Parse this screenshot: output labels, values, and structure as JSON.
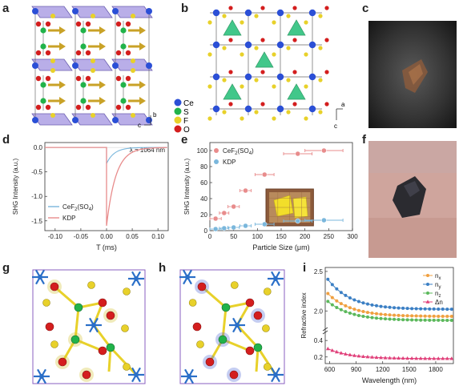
{
  "panels": {
    "a": "a",
    "b": "b",
    "c": "c",
    "d": "d",
    "e": "e",
    "f": "f",
    "g": "g",
    "h": "h",
    "i": "i"
  },
  "axes_a": {
    "b": "b",
    "c": "c"
  },
  "axes_b": {
    "a": "a",
    "c": "c"
  },
  "elements_b": [
    "Ce",
    "S",
    "F",
    "O"
  ],
  "colors": {
    "Ce": "#2b4fd6",
    "S": "#21b34a",
    "F": "#e8d12a",
    "O": "#d41e1e",
    "polyhedron": "#9a8ad8",
    "tetra": "#2ec27e",
    "arrow": "#c9a227",
    "kdp": "#7ab7dc",
    "cef2": "#e88c8c",
    "nx": "#f0a040",
    "ny": "#3b7fc4",
    "nz": "#5bb85b",
    "dn": "#e0407a",
    "photo_c": "#2a2a2a",
    "photo_f": "#c99a92"
  },
  "chart_data": [
    {
      "panel": "d",
      "type": "line",
      "xlabel": "T (ms)",
      "ylabel": "SHG Intensity (a.u.)",
      "annotation": "λ = 1064 nm",
      "xlim": [
        -0.12,
        0.12
      ],
      "ylim": [
        -1.7,
        0.1
      ],
      "xticks": [
        "-0.10",
        "-0.05",
        "0.00",
        "0.05",
        "0.10"
      ],
      "xtick_values": [
        -0.1,
        -0.05,
        0.0,
        0.05,
        0.1
      ],
      "yticks": [
        "0.0",
        "-0.5",
        "-1.0",
        "-1.5"
      ],
      "ytick_values": [
        0.0,
        -0.5,
        -1.0,
        -1.5
      ],
      "series": [
        {
          "name": "CeF2(SO4)",
          "label_main": "CeF",
          "label_sub1": "2",
          "label_mid": "(SO",
          "label_sub2": "4",
          "label_end": ")",
          "peak": -0.33,
          "tau": 0.015
        },
        {
          "name": "KDP",
          "peak": -1.6,
          "tau": 0.018
        }
      ]
    },
    {
      "panel": "e",
      "type": "scatter",
      "xlabel": "Particle Size (μm)",
      "ylabel": "SHG Intensity (a.u.)",
      "xlim": [
        0,
        300
      ],
      "ylim": [
        0,
        110
      ],
      "xticks": [
        "0",
        "50",
        "100",
        "150",
        "200",
        "250",
        "300"
      ],
      "xtick_values": [
        0,
        50,
        100,
        150,
        200,
        250,
        300
      ],
      "yticks": [
        "0",
        "20",
        "40",
        "60",
        "80",
        "100"
      ],
      "ytick_values": [
        0,
        20,
        40,
        60,
        80,
        100
      ],
      "series": [
        {
          "name": "CeF2(SO4)",
          "label_main": "CeF",
          "label_sub1": "2",
          "label_mid": "(SO",
          "label_sub2": "4",
          "label_end": ")",
          "x": [
            12,
            30,
            50,
            75,
            115,
            185,
            240
          ],
          "xerr": [
            12,
            10,
            12,
            12,
            20,
            30,
            40
          ],
          "y": [
            15,
            22,
            30,
            50,
            70,
            96,
            100
          ]
        },
        {
          "name": "KDP",
          "x": [
            12,
            30,
            50,
            75,
            115,
            185,
            240
          ],
          "xerr": [
            12,
            10,
            12,
            12,
            20,
            30,
            40
          ],
          "y": [
            2,
            3,
            4,
            6,
            8,
            12,
            13
          ]
        }
      ]
    },
    {
      "panel": "i",
      "type": "line",
      "xlabel": "Wavelength (nm)",
      "ylabel": "Refractive index",
      "xlim": [
        550,
        2000
      ],
      "xticks": [
        "600",
        "900",
        "1200",
        "1500",
        "1800"
      ],
      "xtick_values": [
        600,
        900,
        1200,
        1500,
        1800
      ],
      "yticks": [
        "2.5",
        "2.0",
        "0.4",
        "0.2"
      ],
      "ytick_values": [
        2.5,
        2.0,
        0.4,
        0.2
      ],
      "series": [
        {
          "name": "nx",
          "label_main": "n",
          "label_sub": "x",
          "y_start": 2.22,
          "y_end": 1.93
        },
        {
          "name": "ny",
          "label_main": "n",
          "label_sub": "y",
          "y_start": 2.4,
          "y_end": 2.02
        },
        {
          "name": "nz",
          "label_main": "n",
          "label_sub": "z",
          "y_start": 2.12,
          "y_end": 1.88
        },
        {
          "name": "Δn",
          "label_main": "Δn",
          "label_sub": "",
          "y_start": 0.3,
          "y_end": 0.18
        }
      ]
    }
  ]
}
